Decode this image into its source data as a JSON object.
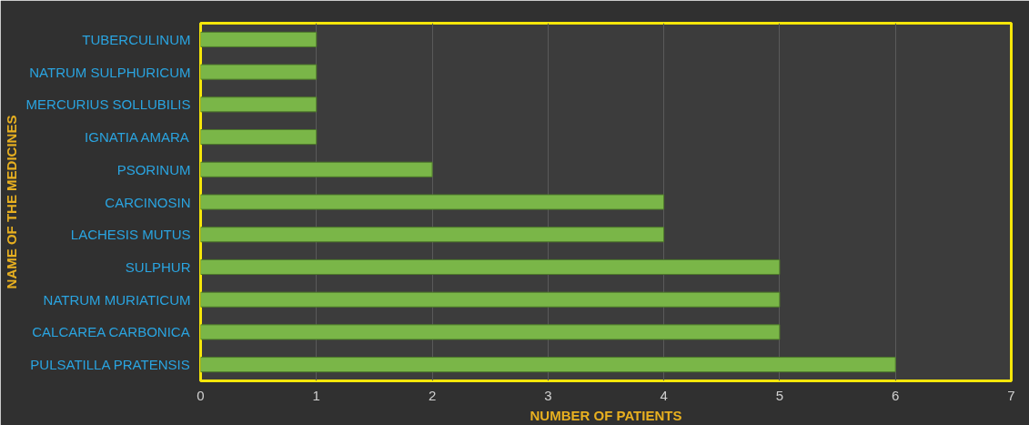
{
  "chart_data": {
    "type": "bar",
    "orientation": "horizontal",
    "xlabel": "NUMBER OF PATIENTS",
    "ylabel": "NAME OF THE MEDICINES",
    "categories": [
      "TUBERCULINUM",
      "NATRUM SULPHURICUM",
      "MERCURIUS SOLLUBILIS",
      "IGNATIA AMARA",
      "PSORINUM",
      "CARCINOSIN",
      "LACHESIS MUTUS",
      "SULPHUR",
      "NATRUM MURIATICUM",
      "CALCAREA CARBONICA",
      "PULSATILLA PRATENSIS"
    ],
    "values": [
      1,
      1,
      1,
      1,
      2,
      4,
      4,
      5,
      5,
      5,
      6
    ],
    "color": "#7ab648",
    "xlim": [
      0,
      7
    ],
    "xticks": [
      0,
      1,
      2,
      3,
      4,
      5,
      6,
      7
    ],
    "grid": "x"
  }
}
